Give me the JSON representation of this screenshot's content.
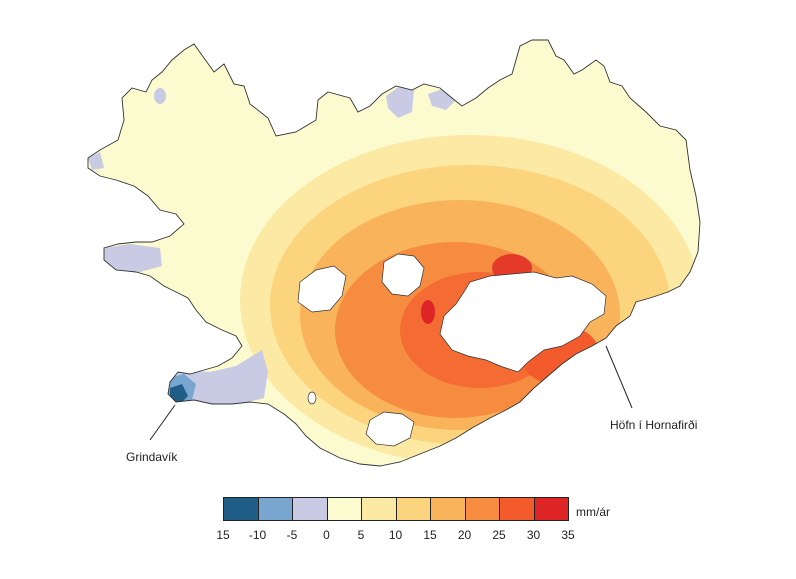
{
  "places": {
    "grindavik": "Grindavík",
    "hofn": "Höfn í Hornafirði"
  },
  "legend": {
    "unit": "mm/ár",
    "ticks": [
      "15",
      "-10",
      "-5",
      "0",
      "5",
      "10",
      "15",
      "20",
      "25",
      "30",
      "35"
    ],
    "colors": [
      "#205e88",
      "#78a6cf",
      "#c9cbe4",
      "#fcfbcf",
      "#fbe9a4",
      "#fbd47d",
      "#f9b35b",
      "#f68c3f",
      "#f35b2c",
      "#e02526"
    ]
  },
  "palette": {
    "land_base": "#fcfbcf",
    "ice_cap": "#ffffff",
    "outline": "#333333",
    "subsidence_light": "#c9cbe4",
    "subsidence_mid": "#78a6cf",
    "subsidence_deep": "#205e88"
  }
}
